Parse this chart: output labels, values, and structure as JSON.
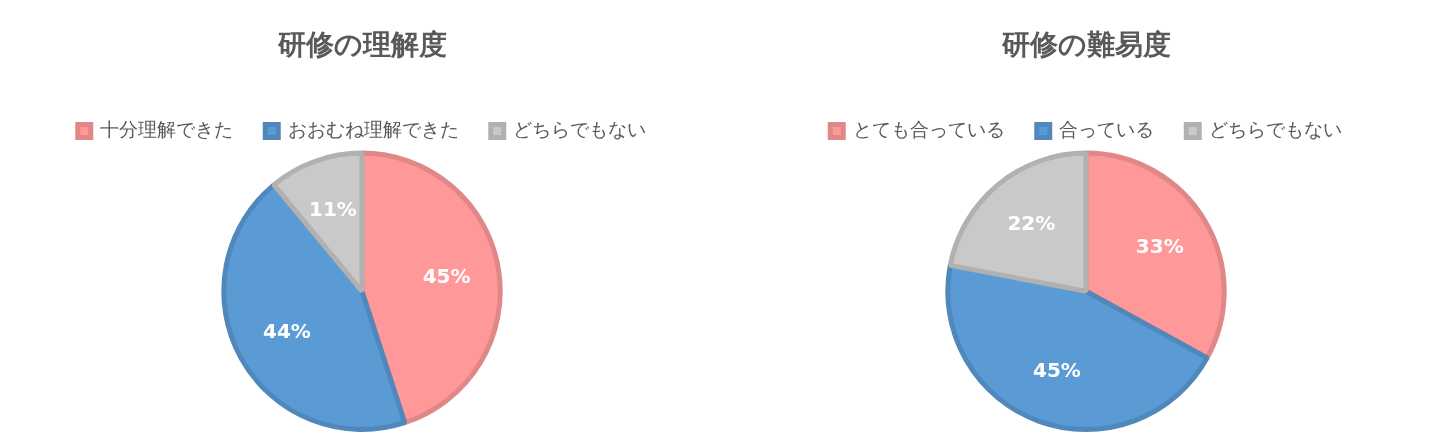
{
  "chart_data": [
    {
      "type": "pie",
      "title": "研修の理解度",
      "categories": [
        "十分理解できた",
        "おおむね理解できた",
        "どちらでもない"
      ],
      "values": [
        45,
        44,
        11
      ],
      "colors": [
        "#ff9999",
        "#5b9bd5",
        "#c9c9c9"
      ],
      "value_labels": [
        "45%",
        "44%",
        "11%"
      ],
      "legend": "top"
    },
    {
      "type": "pie",
      "title": "研修の難易度",
      "categories": [
        "とても合っている",
        "合っている",
        "どちらでもない"
      ],
      "values": [
        33,
        45,
        22
      ],
      "colors": [
        "#ff9999",
        "#5b9bd5",
        "#c9c9c9"
      ],
      "value_labels": [
        "33%",
        "45%",
        "22%"
      ],
      "legend": "top"
    }
  ]
}
